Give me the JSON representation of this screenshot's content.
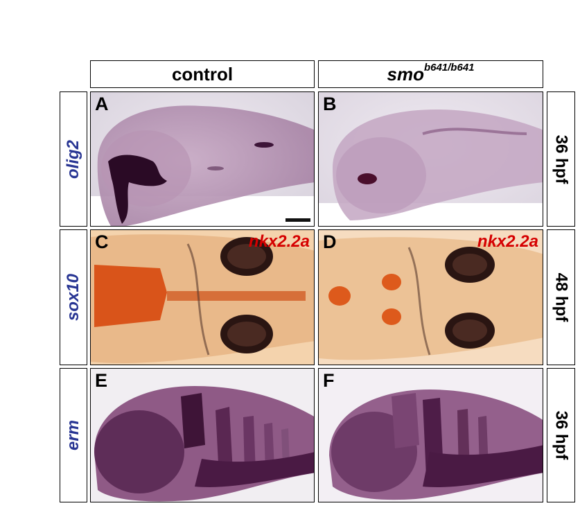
{
  "columns": {
    "control": "control",
    "mutant_gene": "smo",
    "mutant_allele": "b641/b641"
  },
  "rows": [
    {
      "gene": "olig2",
      "stage": "36 hpf"
    },
    {
      "gene": "sox10",
      "stage": "48 hpf"
    },
    {
      "gene": "erm",
      "stage": "36 hpf"
    }
  ],
  "panels": {
    "A": "A",
    "B": "B",
    "C": "C",
    "D": "D",
    "E": "E",
    "F": "F"
  },
  "markers": {
    "C": "nkx2.2a",
    "D": "nkx2.2a"
  },
  "colors": {
    "label_blue": "#283593",
    "marker_red": "#d50000",
    "stain_purple": "#5a1f4a",
    "stain_orange": "#d84a14"
  }
}
